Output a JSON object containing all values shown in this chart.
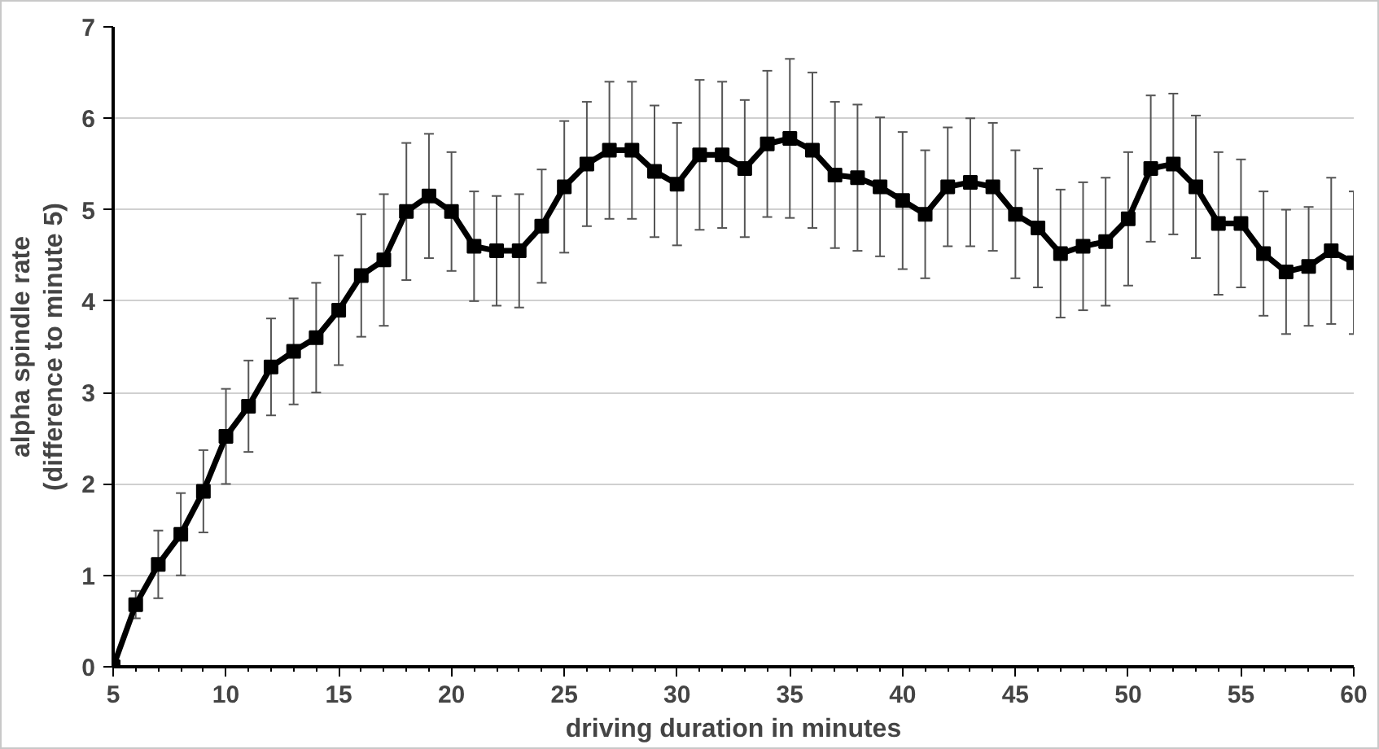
{
  "chart_data": {
    "type": "line",
    "xlabel": "driving duration in minutes",
    "ylabel": "alpha spindle rate\n(difference to minute 5)",
    "x": [
      5,
      6,
      7,
      8,
      9,
      10,
      11,
      12,
      13,
      14,
      15,
      16,
      17,
      18,
      19,
      20,
      21,
      22,
      23,
      24,
      25,
      26,
      27,
      28,
      29,
      30,
      31,
      32,
      33,
      34,
      35,
      36,
      37,
      38,
      39,
      40,
      41,
      42,
      43,
      44,
      45,
      46,
      47,
      48,
      49,
      50,
      51,
      52,
      53,
      54,
      55,
      56,
      57,
      58,
      59,
      60
    ],
    "series": [
      {
        "color": "#000000",
        "values": [
          0,
          0.68,
          1.12,
          1.45,
          1.92,
          2.52,
          2.85,
          3.28,
          3.45,
          3.6,
          3.9,
          4.28,
          4.45,
          4.98,
          5.15,
          4.98,
          4.6,
          4.55,
          4.55,
          4.82,
          5.25,
          5.5,
          5.65,
          5.65,
          5.42,
          5.28,
          5.6,
          5.6,
          5.45,
          5.72,
          5.78,
          5.65,
          5.38,
          5.35,
          5.25,
          5.1,
          4.95,
          5.25,
          5.3,
          5.25,
          4.95,
          4.8,
          4.52,
          4.6,
          4.65,
          4.9,
          5.45,
          5.5,
          5.25,
          4.85,
          4.85,
          4.52,
          4.32,
          4.38,
          4.55,
          4.42
        ],
        "errors": [
          null,
          0.15,
          0.37,
          0.45,
          0.45,
          0.52,
          0.5,
          0.53,
          0.58,
          0.6,
          0.6,
          0.67,
          0.72,
          0.75,
          0.68,
          0.65,
          0.6,
          0.6,
          0.62,
          0.62,
          0.72,
          0.68,
          0.75,
          0.75,
          0.72,
          0.67,
          0.82,
          0.8,
          0.75,
          0.8,
          0.87,
          0.85,
          0.8,
          0.8,
          0.76,
          0.75,
          0.7,
          0.65,
          0.7,
          0.7,
          0.7,
          0.65,
          0.7,
          0.7,
          0.7,
          0.73,
          0.8,
          0.77,
          0.78,
          0.78,
          0.7,
          0.68,
          0.68,
          0.65,
          0.8,
          0.78
        ]
      }
    ],
    "xlim": [
      5,
      60
    ],
    "xticks": [
      5,
      10,
      15,
      20,
      25,
      30,
      35,
      40,
      45,
      50,
      55,
      60
    ],
    "ylim": [
      0,
      7
    ],
    "yticks": [
      0,
      1,
      2,
      3,
      4,
      5,
      6,
      7
    ],
    "grid": "y",
    "marker": "square",
    "line_style": "solid"
  }
}
